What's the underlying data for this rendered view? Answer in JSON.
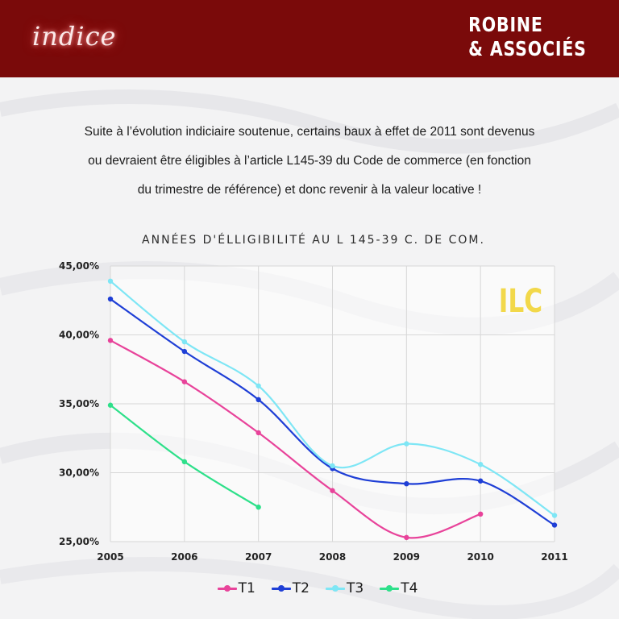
{
  "header": {
    "brand_left": "indice",
    "brand_right_line1": "ROBINE",
    "brand_right_line2": "& ASSOCIÉS"
  },
  "intro": {
    "line1": "Suite à l’évolution indiciaire soutenue, certains baux à effet de 2011 sont devenus",
    "line2": "ou devraient être éligibles à l’article L145-39 du Code de commerce (en fonction",
    "line3": "du trimestre de référence) et donc revenir à la valeur locative  !"
  },
  "colors": {
    "header_bg": "#7a0a0a",
    "ilc_label": "#f2d84a",
    "T1": "#e8439a",
    "T2": "#1f3fd6",
    "T3": "#7ee6f5",
    "T4": "#2ee08a"
  },
  "chart_data": {
    "type": "line",
    "title": "ANNÉES D'ÉLLIGIBILITÉ AU L 145-39 C. DE COM.",
    "annotation": "ILC",
    "x": [
      "2005",
      "2006",
      "2007",
      "2008",
      "2009",
      "2010",
      "2011"
    ],
    "ylim": [
      25,
      45
    ],
    "y_ticks": [
      25,
      30,
      35,
      40,
      45
    ],
    "y_tick_labels": [
      "25,00%",
      "30,00%",
      "35,00%",
      "40,00%",
      "45,00%"
    ],
    "grid": true,
    "legend_position": "bottom",
    "series": [
      {
        "name": "T1",
        "values": [
          39.6,
          36.6,
          32.9,
          28.7,
          25.3,
          27.0,
          null
        ]
      },
      {
        "name": "T2",
        "values": [
          42.6,
          38.8,
          35.3,
          30.3,
          29.2,
          29.4,
          26.2
        ]
      },
      {
        "name": "T3",
        "values": [
          43.9,
          39.5,
          36.3,
          30.5,
          32.1,
          30.6,
          26.9
        ]
      },
      {
        "name": "T4",
        "values": [
          34.9,
          30.8,
          27.5,
          null,
          null,
          null,
          null
        ]
      }
    ]
  }
}
